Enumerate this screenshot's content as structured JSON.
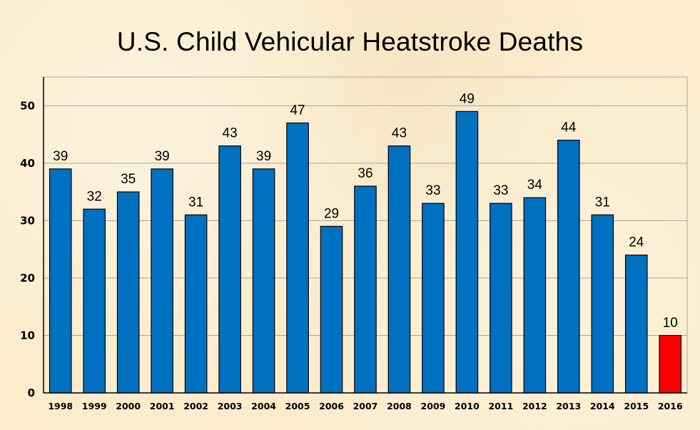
{
  "chart_data": {
    "type": "bar",
    "title": "U.S. Child Vehicular Heatstroke Deaths",
    "xlabel": "",
    "ylabel": "",
    "ylim": [
      0,
      55
    ],
    "yticks": [
      0,
      10,
      20,
      30,
      40,
      50
    ],
    "grid": true,
    "legend": "none",
    "categories": [
      "1998",
      "1999",
      "2000",
      "2001",
      "2002",
      "2003",
      "2004",
      "2005",
      "2006",
      "2007",
      "2008",
      "2009",
      "2010",
      "2011",
      "2012",
      "2013",
      "2014",
      "2015",
      "2016"
    ],
    "values": [
      39,
      32,
      35,
      39,
      31,
      43,
      39,
      47,
      29,
      36,
      43,
      33,
      49,
      33,
      34,
      44,
      31,
      24,
      10
    ],
    "bar_colors": [
      "#0070c0",
      "#0070c0",
      "#0070c0",
      "#0070c0",
      "#0070c0",
      "#0070c0",
      "#0070c0",
      "#0070c0",
      "#0070c0",
      "#0070c0",
      "#0070c0",
      "#0070c0",
      "#0070c0",
      "#0070c0",
      "#0070c0",
      "#0070c0",
      "#0070c0",
      "#0070c0",
      "#ff0000"
    ],
    "data_labels": true
  },
  "colors": {
    "background": "#fbeccc",
    "bar": "#0070c0",
    "highlight_bar": "#ff0000",
    "gridline": "#a6a6a6",
    "axis": "#000000"
  }
}
